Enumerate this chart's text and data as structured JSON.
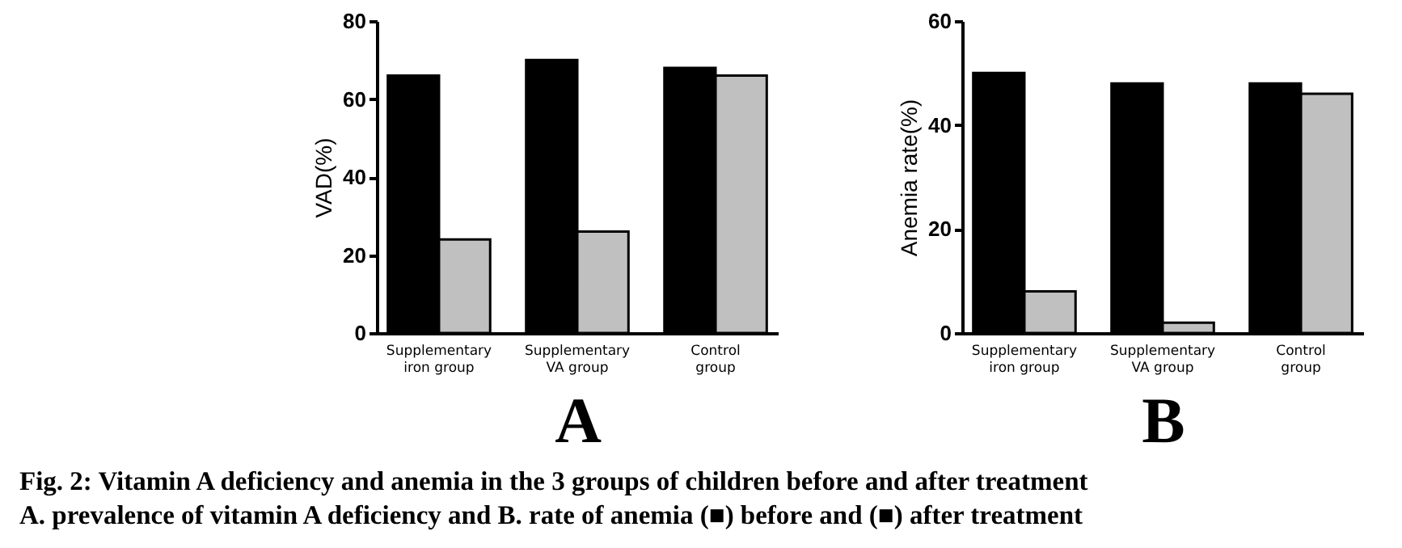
{
  "chart_data": [
    {
      "type": "bar",
      "xlabel": "A",
      "ylabel": "VAD(%)",
      "categories": [
        "Supplementary iron group",
        "Supplementary VA group",
        "Control group"
      ],
      "series": [
        {
          "color": "#000000",
          "values": [
            66,
            70,
            68
          ]
        },
        {
          "color": "#c0c0c0",
          "values": [
            24,
            26,
            66
          ]
        }
      ],
      "ylim": [
        0,
        80
      ],
      "yticks": [
        0,
        20,
        40,
        60,
        80
      ],
      "grid": false,
      "legend": false,
      "annotations": [
        "Fig. 2: Vitamin A deficiency and anemia in the 3 groups of children before and after treatment",
        "A. prevalence of vitamin A deficiency and B. rate of anemia (■) before and (■) after treatment"
      ]
    },
    {
      "type": "bar",
      "xlabel": "B",
      "ylabel": "Anemia rate(%)",
      "categories": [
        "Supplementary iron group",
        "Supplementary VA group",
        "Control group"
      ],
      "series": [
        {
          "color": "#000000",
          "values": [
            50,
            48,
            48
          ]
        },
        {
          "color": "#c0c0c0",
          "values": [
            8,
            2,
            46
          ]
        }
      ],
      "ylim": [
        0,
        60
      ],
      "yticks": [
        0,
        20,
        40,
        60
      ],
      "grid": false,
      "legend": false
    }
  ]
}
